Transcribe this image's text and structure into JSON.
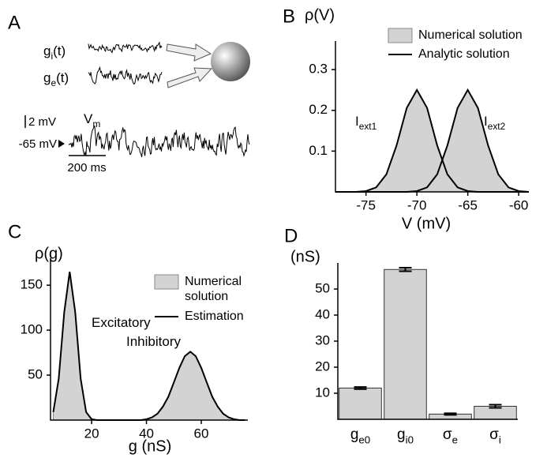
{
  "panel_a": {
    "label": "A",
    "inputs": [
      {
        "text": "g",
        "sub": "i",
        "suffix": "(t)"
      },
      {
        "text": "g",
        "sub": "e",
        "suffix": "(t)"
      }
    ],
    "scale_v": "2 mV",
    "vm": {
      "text": "V",
      "sub": "m"
    },
    "rest": "-65 mV",
    "scale_t": "200 ms"
  },
  "chart_data": [
    {
      "type": "area",
      "panel": "B",
      "ylabel": "ρ(V)",
      "xlabel": "V (mV)",
      "x": [
        -78,
        -77,
        -76,
        -75,
        -74,
        -73,
        -72,
        -71,
        -70,
        -69,
        -68,
        -67,
        -66,
        -65,
        -64,
        -63,
        -62,
        -61,
        -60,
        -59
      ],
      "series": [
        {
          "name": "Numerical solution",
          "color": "#d3d3d3",
          "style": "fill",
          "curves": [
            [
              0,
              0,
              0,
              0.002,
              0.011,
              0.043,
              0.114,
              0.206,
              0.25,
              0.206,
              0.114,
              0.043,
              0.011,
              0.002,
              0,
              0,
              0,
              0,
              0,
              0
            ],
            [
              0,
              0,
              0,
              0,
              0,
              0,
              0,
              0,
              0.002,
              0.011,
              0.043,
              0.114,
              0.206,
              0.25,
              0.206,
              0.114,
              0.043,
              0.011,
              0.002,
              0
            ]
          ]
        },
        {
          "name": "Analytic solution",
          "color": "#000000",
          "style": "line",
          "curves": [
            [
              0,
              0,
              0,
              0.002,
              0.011,
              0.043,
              0.114,
              0.206,
              0.25,
              0.206,
              0.114,
              0.043,
              0.011,
              0.002,
              0,
              0,
              0,
              0,
              0,
              0
            ],
            [
              0,
              0,
              0,
              0,
              0,
              0,
              0,
              0,
              0.002,
              0.011,
              0.043,
              0.114,
              0.206,
              0.25,
              0.206,
              0.114,
              0.043,
              0.011,
              0.002,
              0
            ]
          ]
        }
      ],
      "annotations": [
        {
          "text": "I",
          "sub": "ext1"
        },
        {
          "text": "I",
          "sub": "ext2"
        }
      ],
      "xlim": [
        -78,
        -59
      ],
      "ylim": [
        0,
        0.37
      ],
      "xticks": [
        -75,
        -70,
        -65,
        -60
      ],
      "yticks": [
        0.1,
        0.2,
        0.3
      ],
      "legend": "upper right"
    },
    {
      "type": "area",
      "panel": "C",
      "ylabel": "ρ(g)",
      "xlabel": "g (nS)",
      "x": [
        6,
        8,
        10,
        12,
        14,
        16,
        18,
        20,
        22,
        24,
        26,
        28,
        30,
        32,
        34,
        36,
        38,
        40,
        42,
        44,
        46,
        48,
        50,
        52,
        54,
        56,
        58,
        60,
        62,
        64,
        66,
        68,
        70,
        72,
        74,
        76
      ],
      "series": [
        {
          "name": "Numerical solution",
          "color": "#d3d3d3",
          "style": "fill",
          "curves": [
            [
              9,
              46,
              120,
              165,
              120,
              46,
              9,
              1,
              0,
              0,
              0,
              0,
              0,
              0,
              0,
              0,
              0,
              1,
              3,
              7,
              15,
              26,
              42,
              58,
              71,
              76,
              71,
              58,
              42,
              26,
              15,
              7,
              3,
              1,
              0,
              0
            ]
          ]
        },
        {
          "name": "Estimation",
          "color": "#000000",
          "style": "line",
          "curves": [
            [
              9,
              46,
              120,
              165,
              120,
              46,
              9,
              1,
              0,
              0,
              0,
              0,
              0,
              0,
              0,
              0,
              0,
              1,
              3,
              7,
              15,
              26,
              42,
              58,
              71,
              76,
              71,
              58,
              42,
              26,
              15,
              7,
              3,
              1,
              0,
              0
            ]
          ]
        }
      ],
      "annotations": [
        {
          "text": "Excitatory"
        },
        {
          "text": "Inhibitory"
        }
      ],
      "xlim": [
        5,
        77
      ],
      "ylim": [
        0,
        180
      ],
      "xticks": [
        20,
        40,
        60
      ],
      "yticks": [
        50,
        100,
        150
      ],
      "legend": "upper right"
    },
    {
      "type": "bar",
      "panel": "D",
      "ylabel": "(nS)",
      "categories": [
        {
          "text": "g",
          "sub": "e0"
        },
        {
          "text": "g",
          "sub": "i0"
        },
        {
          "text": "σ",
          "sub": "e"
        },
        {
          "text": "σ",
          "sub": "i"
        }
      ],
      "values": [
        12,
        57.5,
        2,
        5
      ],
      "errors": [
        0.4,
        0.7,
        0.3,
        0.6
      ],
      "color": "#d3d3d3",
      "ylim": [
        0,
        60
      ],
      "yticks": [
        10,
        20,
        30,
        40,
        50
      ]
    }
  ]
}
